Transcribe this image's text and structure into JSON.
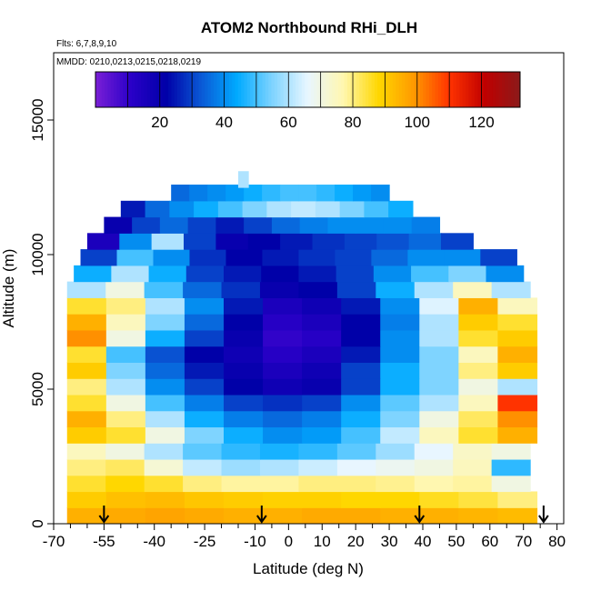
{
  "chart_data": {
    "type": "heatmap",
    "title": "ATOM2 Northbound RHi_DLH",
    "subtitle": "Flts: 6,7,8,9,10",
    "annotation": "MMDD: 0210,0213,0215,0218,0219",
    "xlabel": "Latitude (deg N)",
    "ylabel": "Altitude (m)",
    "xlim": [
      -70,
      82
    ],
    "ylim": [
      0,
      17500
    ],
    "x_ticks": [
      -70,
      -55,
      -40,
      -25,
      -10,
      0,
      10,
      20,
      30,
      40,
      50,
      60,
      70,
      80
    ],
    "x_minor_ticks": [
      -65,
      -60,
      -50,
      -45,
      -35,
      -30,
      -20,
      -15,
      -5,
      5,
      15,
      25,
      35,
      45,
      55,
      65,
      75
    ],
    "y_ticks": [
      0,
      5000,
      10000,
      15000
    ],
    "colorbar": {
      "min": 0,
      "max": 132,
      "ticks": [
        20,
        40,
        60,
        80,
        100,
        120
      ],
      "dividers": [
        10,
        20,
        30,
        40,
        50,
        60,
        70,
        80,
        90,
        100,
        110,
        120
      ],
      "colors": [
        "#7a1fd6",
        "#2a00c8",
        "#0000a8",
        "#0a5ad6",
        "#00aaff",
        "#7fd4ff",
        "#e8f6ff",
        "#fff7b0",
        "#ffd700",
        "#ff9900",
        "#ff3300",
        "#c00000",
        "#8b1a1a"
      ]
    },
    "flight_markers_lat": [
      -55,
      -8,
      39,
      76
    ],
    "series": [
      {
        "altitude": 300,
        "lat_range": [
          -66,
          74
        ],
        "values": [
          95,
          96,
          97,
          96,
          95,
          95,
          96,
          96,
          95,
          95,
          94,
          93
        ]
      },
      {
        "altitude": 900,
        "lat_range": [
          -66,
          74
        ],
        "values": [
          90,
          92,
          93,
          91,
          90,
          89,
          89,
          88,
          88,
          86,
          84,
          80
        ]
      },
      {
        "altitude": 1500,
        "lat_range": [
          -66,
          72
        ],
        "values": [
          85,
          88,
          85,
          80,
          78,
          78,
          80,
          80,
          79,
          77,
          78,
          70
        ]
      },
      {
        "altitude": 2100,
        "lat_range": [
          -66,
          72
        ],
        "values": [
          80,
          82,
          72,
          62,
          58,
          60,
          63,
          66,
          68,
          70,
          75,
          48
        ]
      },
      {
        "altitude": 2700,
        "lat_range": [
          -66,
          72
        ],
        "values": [
          75,
          70,
          60,
          52,
          48,
          46,
          48,
          52,
          58,
          66,
          74,
          70
        ]
      },
      {
        "altitude": 3300,
        "lat_range": [
          -66,
          74
        ],
        "values": [
          90,
          85,
          70,
          55,
          45,
          40,
          42,
          50,
          62,
          75,
          85,
          95
        ]
      },
      {
        "altitude": 3900,
        "lat_range": [
          -66,
          74
        ],
        "values": [
          95,
          80,
          60,
          45,
          38,
          35,
          38,
          45,
          55,
          70,
          82,
          100
        ]
      },
      {
        "altitude": 4500,
        "lat_range": [
          -66,
          74
        ],
        "values": [
          85,
          70,
          50,
          38,
          30,
          28,
          30,
          40,
          52,
          60,
          75,
          110
        ]
      },
      {
        "altitude": 5100,
        "lat_range": [
          -66,
          74
        ],
        "values": [
          80,
          60,
          40,
          30,
          22,
          18,
          20,
          30,
          45,
          55,
          70,
          60
        ]
      },
      {
        "altitude": 5700,
        "lat_range": [
          -66,
          74
        ],
        "values": [
          90,
          55,
          35,
          25,
          20,
          15,
          18,
          30,
          45,
          55,
          80,
          90
        ]
      },
      {
        "altitude": 6300,
        "lat_range": [
          -66,
          74
        ],
        "values": [
          85,
          50,
          32,
          22,
          18,
          12,
          15,
          25,
          40,
          55,
          75,
          95
        ]
      },
      {
        "altitude": 6900,
        "lat_range": [
          -66,
          74
        ],
        "values": [
          100,
          70,
          45,
          30,
          20,
          10,
          12,
          22,
          40,
          60,
          85,
          90
        ]
      },
      {
        "altitude": 7500,
        "lat_range": [
          -66,
          74
        ],
        "values": [
          95,
          75,
          55,
          35,
          22,
          12,
          15,
          22,
          38,
          60,
          90,
          85
        ]
      },
      {
        "altitude": 8100,
        "lat_range": [
          -66,
          74
        ],
        "values": [
          85,
          80,
          60,
          40,
          25,
          15,
          18,
          25,
          40,
          65,
          95,
          75
        ]
      },
      {
        "altitude": 8700,
        "lat_range": [
          -66,
          72
        ],
        "values": [
          60,
          70,
          50,
          35,
          28,
          20,
          22,
          30,
          45,
          60,
          75,
          60
        ]
      },
      {
        "altitude": 9300,
        "lat_range": [
          -64,
          70
        ],
        "values": [
          45,
          60,
          45,
          30,
          25,
          22,
          25,
          30,
          40,
          50,
          55,
          40
        ]
      },
      {
        "altitude": 9900,
        "lat_range": [
          -62,
          68
        ],
        "values": [
          30,
          50,
          40,
          28,
          22,
          25,
          28,
          30,
          35,
          40,
          40,
          30
        ]
      },
      {
        "altitude": 10500,
        "lat_range": [
          -60,
          55
        ],
        "values": [
          15,
          40,
          60,
          30,
          20,
          22,
          25,
          28,
          30,
          32,
          35,
          30
        ]
      },
      {
        "altitude": 11100,
        "lat_range": [
          -55,
          45
        ],
        "values": [
          20,
          30,
          35,
          30,
          25,
          30,
          35,
          38,
          40,
          40,
          40,
          38
        ]
      },
      {
        "altitude": 11700,
        "lat_range": [
          -50,
          37
        ],
        "values": [
          25,
          35,
          40,
          45,
          50,
          55,
          60,
          62,
          60,
          55,
          50,
          45
        ]
      },
      {
        "altitude": 12300,
        "lat_range": [
          -35,
          30
        ],
        "values": [
          35,
          38,
          40,
          42,
          45,
          48,
          50,
          50,
          48,
          45,
          42,
          40
        ]
      },
      {
        "altitude": 12800,
        "lat_range": [
          -15,
          -12
        ],
        "values": [
          60
        ]
      }
    ]
  }
}
